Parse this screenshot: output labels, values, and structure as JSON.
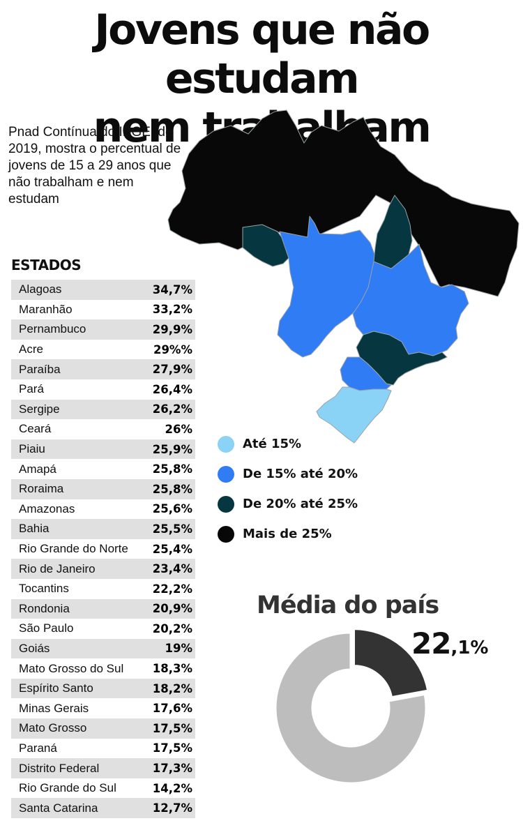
{
  "title_line1": "Jovens que não estudam",
  "title_line2": "nem trabalham",
  "intro": "Pnad Contínua do IBGE, de 2019, mostra o percentual de jovens de 15 a 29 anos que não trabalham e nem estudam",
  "states_heading": "ESTADOS",
  "colors": {
    "ate_15": "#8ad3f7",
    "de_15_20": "#2f7cf5",
    "de_20_25": "#063640",
    "mais_25": "#080808",
    "row_shade": "#e0e0e0",
    "donut_rest": "#bdbdbd",
    "donut_share": "#333333"
  },
  "states": [
    {
      "name": "Alagoas",
      "value": "34,7%"
    },
    {
      "name": "Maranhão",
      "value": "33,2%"
    },
    {
      "name": "Pernambuco",
      "value": "29,9%"
    },
    {
      "name": "Acre",
      "value": "29%%"
    },
    {
      "name": "Paraíba",
      "value": "27,9%"
    },
    {
      "name": "Pará",
      "value": "26,4%"
    },
    {
      "name": "Sergipe",
      "value": "26,2%"
    },
    {
      "name": "Ceará",
      "value": "26%"
    },
    {
      "name": "Piaiu",
      "value": "25,9%"
    },
    {
      "name": "Amapá",
      "value": "25,8%"
    },
    {
      "name": "Roraima",
      "value": "25,8%"
    },
    {
      "name": "Amazonas",
      "value": "25,6%"
    },
    {
      "name": "Bahia",
      "value": "25,5%"
    },
    {
      "name": "Rio Grande do Norte",
      "value": "25,4%"
    },
    {
      "name": "Rio de Janeiro",
      "value": "23,4%"
    },
    {
      "name": "Tocantins",
      "value": "22,2%"
    },
    {
      "name": "Rondonia",
      "value": "20,9%"
    },
    {
      "name": "São Paulo",
      "value": "20,2%"
    },
    {
      "name": "Goiás",
      "value": "19%"
    },
    {
      "name": "Mato Grosso do Sul",
      "value": "18,3%"
    },
    {
      "name": "Espírito Santo",
      "value": "18,2%"
    },
    {
      "name": "Minas Gerais",
      "value": "17,6%"
    },
    {
      "name": "Mato Grosso",
      "value": "17,5%"
    },
    {
      "name": "Paraná",
      "value": "17,5%"
    },
    {
      "name": "Distrito Federal",
      "value": "17,3%"
    },
    {
      "name": "Rio Grande do Sul",
      "value": "14,2%"
    },
    {
      "name": "Santa Catarina",
      "value": "12,7%"
    }
  ],
  "legend": [
    {
      "label": "Até 15%",
      "color": "#8ad3f7"
    },
    {
      "label": "De 15% até 20%",
      "color": "#2f7cf5"
    },
    {
      "label": "De 20% até 25%",
      "color": "#063640"
    },
    {
      "label": "Mais de 25%",
      "color": "#080808"
    }
  ],
  "average": {
    "title": "Média do país",
    "value_int": "22",
    "value_dec": ",1%"
  },
  "chart_data": [
    {
      "type": "table",
      "columns": [
        "Estado",
        "%"
      ],
      "rows": [
        [
          "Alagoas",
          34.7
        ],
        [
          "Maranhão",
          33.2
        ],
        [
          "Pernambuco",
          29.9
        ],
        [
          "Acre",
          29
        ],
        [
          "Paraíba",
          27.9
        ],
        [
          "Pará",
          26.4
        ],
        [
          "Sergipe",
          26.2
        ],
        [
          "Ceará",
          26
        ],
        [
          "Piaiu",
          25.9
        ],
        [
          "Amapá",
          25.8
        ],
        [
          "Roraima",
          25.8
        ],
        [
          "Amazonas",
          25.6
        ],
        [
          "Bahia",
          25.5
        ],
        [
          "Rio Grande do Norte",
          25.4
        ],
        [
          "Rio de Janeiro",
          23.4
        ],
        [
          "Tocantins",
          22.2
        ],
        [
          "Rondonia",
          20.9
        ],
        [
          "São Paulo",
          20.2
        ],
        [
          "Goiás",
          19
        ],
        [
          "Mato Grosso do Sul",
          18.3
        ],
        [
          "Espírito Santo",
          18.2
        ],
        [
          "Minas Gerais",
          17.6
        ],
        [
          "Mato Grosso",
          17.5
        ],
        [
          "Paraná",
          17.5
        ],
        [
          "Distrito Federal",
          17.3
        ],
        [
          "Rio Grande do Sul",
          14.2
        ],
        [
          "Santa Catarina",
          12.7
        ]
      ]
    },
    {
      "type": "pie",
      "title": "Média do país",
      "slices": [
        {
          "value": 22.1,
          "color": "#333333"
        },
        {
          "value": 77.9,
          "color": "#bdbdbd"
        }
      ]
    }
  ]
}
